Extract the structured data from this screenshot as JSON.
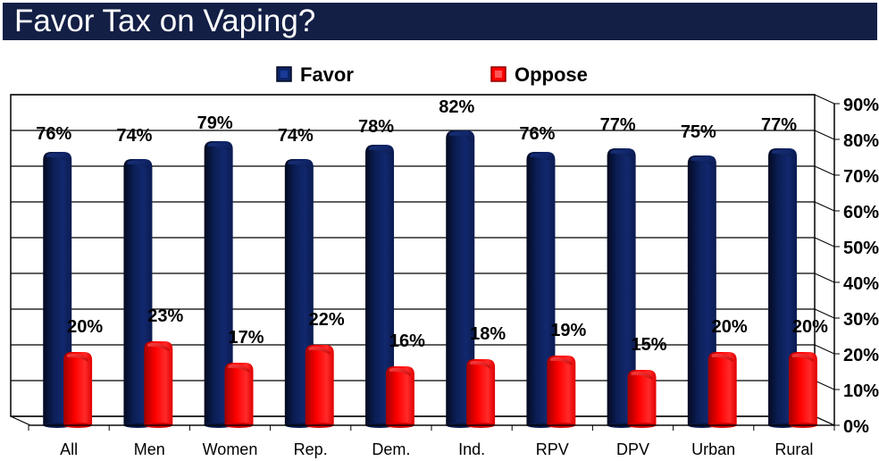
{
  "chart_data": {
    "type": "bar",
    "title": "Favor Tax on Vaping?",
    "xlabel": "",
    "ylabel": "",
    "categories": [
      "All",
      "Men",
      "Women",
      "Rep.",
      "Dem.",
      "Ind.",
      "RPV",
      "DPV",
      "Urban",
      "Rural"
    ],
    "series": [
      {
        "name": "Favor",
        "color": "#0d2466",
        "values": [
          76,
          74,
          79,
          74,
          78,
          82,
          76,
          77,
          75,
          77
        ]
      },
      {
        "name": "Oppose",
        "color": "#ff0000",
        "values": [
          20,
          23,
          17,
          22,
          16,
          18,
          19,
          15,
          20,
          20
        ]
      }
    ],
    "data_labels": {
      "Favor": [
        "76%",
        "74%",
        "79%",
        "74%",
        "78%",
        "82%",
        "76%",
        "77%",
        "75%",
        "77%"
      ],
      "Oppose": [
        "20%",
        "23%",
        "17%",
        "22%",
        "16%",
        "18%",
        "19%",
        "15%",
        "20%",
        "20%"
      ]
    },
    "ylim": [
      0,
      90
    ],
    "yticks": [
      0,
      10,
      20,
      30,
      40,
      50,
      60,
      70,
      80,
      90
    ],
    "ytick_labels": [
      "0%",
      "10%",
      "20%",
      "30%",
      "40%",
      "50%",
      "60%",
      "70%",
      "80%",
      "90%"
    ],
    "y_axis_side": "right",
    "grid": true,
    "legend_position": "top-center",
    "style": "3d-cylinder"
  },
  "colors": {
    "title_bar": "#131f45",
    "title_text": "#ffffff"
  }
}
